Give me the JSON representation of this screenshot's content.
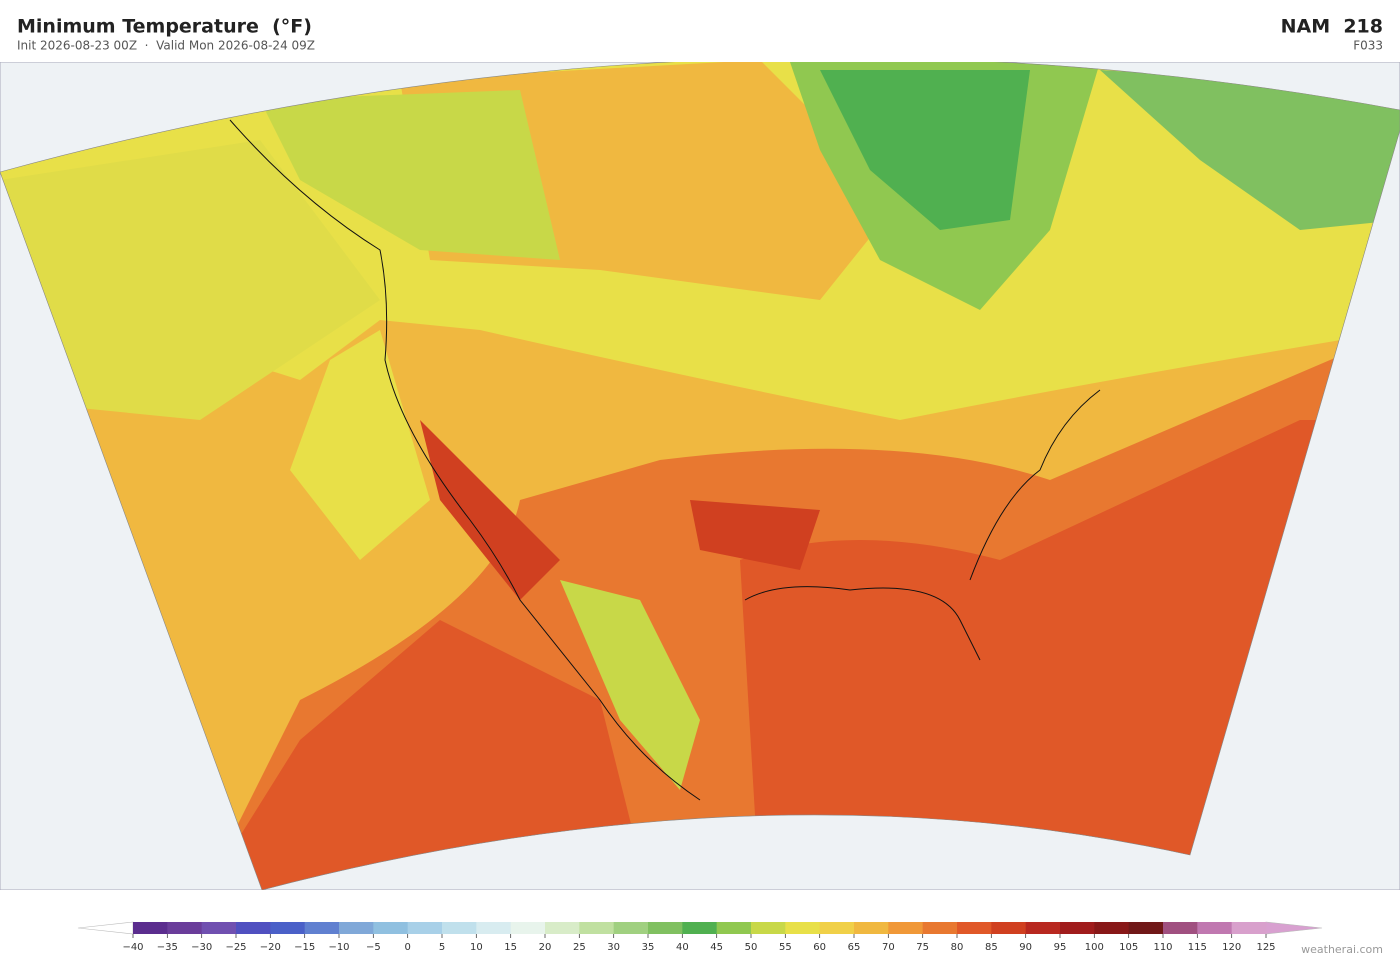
{
  "header": {
    "title": "Minimum Temperature  (°F)",
    "subtitle": "Init 2026-08-23 00Z  ·  Valid Mon 2026-08-24 09Z",
    "model": "NAM  218",
    "forecast_hour": "F033"
  },
  "colorbar": {
    "ticks": [
      {
        "value": -40,
        "label": "−40"
      },
      {
        "value": -35,
        "label": "−35"
      },
      {
        "value": -30,
        "label": "−30"
      },
      {
        "value": -25,
        "label": "−25"
      },
      {
        "value": -20,
        "label": "−20"
      },
      {
        "value": -15,
        "label": "−15"
      },
      {
        "value": -10,
        "label": "−10"
      },
      {
        "value": -5,
        "label": "−5"
      },
      0,
      5,
      10,
      15,
      20,
      25,
      30,
      35,
      40,
      45,
      50,
      55,
      60,
      65,
      70,
      75,
      80,
      85,
      90,
      95,
      100,
      105,
      110,
      115,
      120,
      125
    ],
    "colors": [
      "#5b2d8e",
      "#6a3d9a",
      "#7050b0",
      "#5050c0",
      "#4a60c8",
      "#6080d0",
      "#80a8d8",
      "#90c0e0",
      "#a8d0e8",
      "#c0e0ec",
      "#d8ecf0",
      "#e8f4ec",
      "#d8ecc8",
      "#c0e0a0",
      "#a0d080",
      "#80c060",
      "#50b050",
      "#90c850",
      "#c8d848",
      "#e8e048",
      "#f0d048",
      "#f0b840",
      "#f09838",
      "#e87830",
      "#e05828",
      "#d04020",
      "#b82820",
      "#a01c1c",
      "#881818",
      "#701818",
      "#a05080",
      "#c078b0",
      "#d8a0cc"
    ],
    "under_color": "#ffffff",
    "over_color": "#d8a0d0"
  },
  "credit": "weatherai.com"
}
